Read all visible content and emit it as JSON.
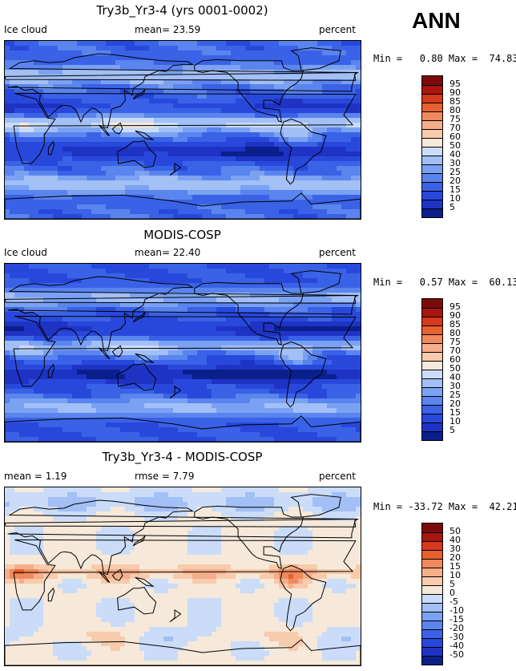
{
  "season": "ANN",
  "panels": [
    {
      "title": "Try3b_Yr3-4 (yrs 0001-0002)",
      "left_label": "Ice cloud",
      "center_label": "mean=  23.59",
      "right_label": "percent",
      "minmax": "Min =   0.80 Max =  74.83",
      "palette": "abs",
      "colorbar_labels": [
        "95",
        "90",
        "85",
        "80",
        "75",
        "70",
        "60",
        "50",
        "40",
        "30",
        "25",
        "20",
        "15",
        "10",
        "5"
      ]
    },
    {
      "title": "MODIS-COSP",
      "left_label": "Ice cloud",
      "center_label": "mean=  22.40",
      "right_label": "percent",
      "minmax": "Min =   0.57 Max =  60.13",
      "palette": "abs",
      "colorbar_labels": [
        "95",
        "90",
        "85",
        "80",
        "75",
        "70",
        "60",
        "50",
        "40",
        "30",
        "25",
        "20",
        "15",
        "10",
        "5"
      ]
    },
    {
      "title": "Try3b_Yr3-4 - MODIS-COSP",
      "left_label": "mean =   1.19",
      "center_label": "rmse =   7.79",
      "right_label": "percent",
      "minmax": "Min = -33.72 Max =  42.21",
      "palette": "diff",
      "colorbar_labels": [
        "50",
        "40",
        "30",
        "20",
        "15",
        "10",
        "5",
        "0",
        "-5",
        "-10",
        "-15",
        "-20",
        "-30",
        "-40",
        "-50"
      ]
    }
  ],
  "palettes": {
    "abs": [
      "#0a1f8c",
      "#1e33c4",
      "#2848dc",
      "#3a62e6",
      "#5a84ee",
      "#7ba2f2",
      "#a2bff6",
      "#cadcf8",
      "#f6e9da",
      "#f7cbab",
      "#f5ae8a",
      "#f08a5e",
      "#e8602e",
      "#d6391b",
      "#a8160e",
      "#7d0a0a"
    ],
    "diff": [
      "#0a1f8c",
      "#1e33c4",
      "#2848dc",
      "#3a62e6",
      "#5a84ee",
      "#7ba2f2",
      "#a2bff6",
      "#cadcf8",
      "#f6e9da",
      "#f7cbab",
      "#f5ae8a",
      "#f08a5e",
      "#e8602e",
      "#d6391b",
      "#a8160e",
      "#7d0a0a"
    ]
  }
}
